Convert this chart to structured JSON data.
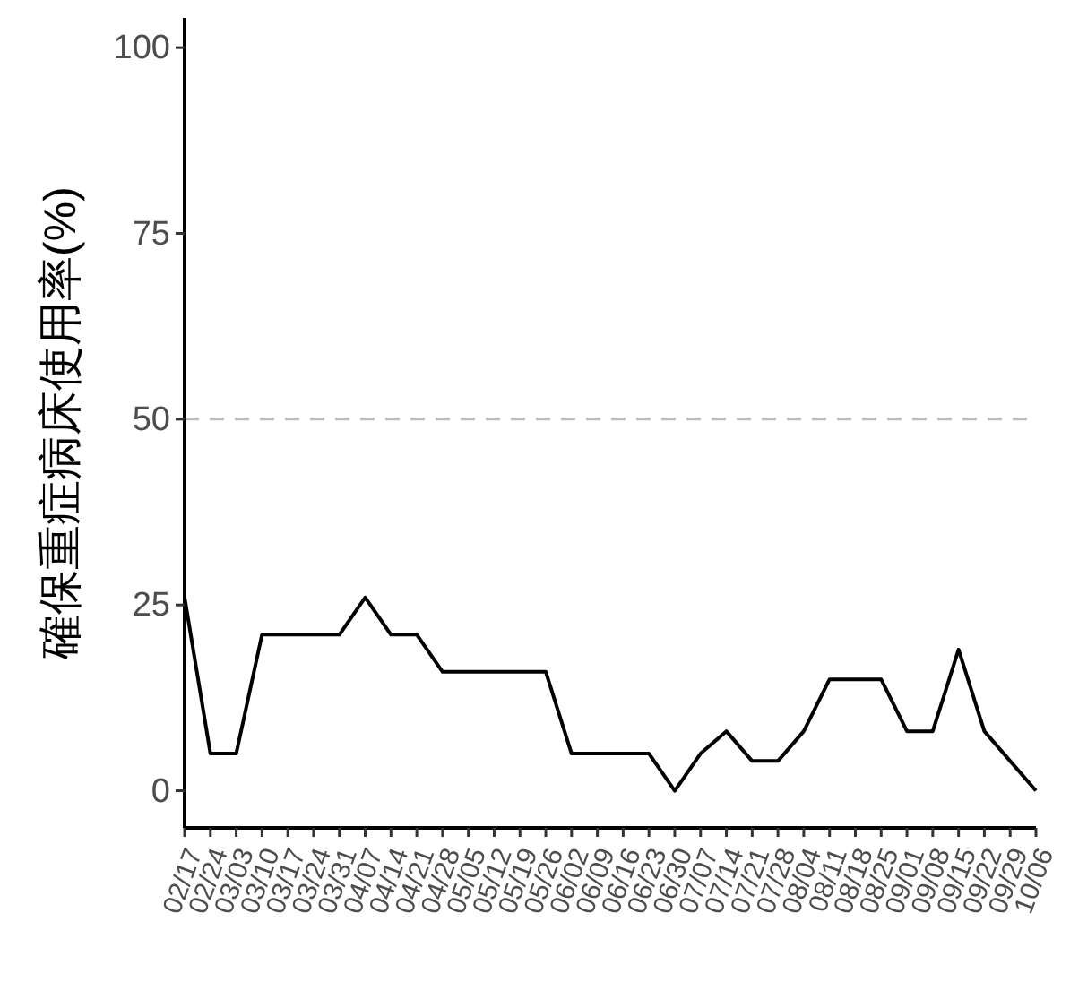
{
  "chart_data": {
    "type": "line",
    "ylabel": "確保重症病床使用率(%)",
    "categories": [
      "02/17",
      "02/24",
      "03/03",
      "03/10",
      "03/17",
      "03/24",
      "03/31",
      "04/07",
      "04/14",
      "04/21",
      "04/28",
      "05/05",
      "05/12",
      "05/19",
      "05/26",
      "06/02",
      "06/09",
      "06/16",
      "06/23",
      "06/30",
      "07/07",
      "07/14",
      "07/21",
      "07/28",
      "08/04",
      "08/11",
      "08/18",
      "08/25",
      "09/01",
      "09/08",
      "09/15",
      "09/22",
      "09/29",
      "10/06"
    ],
    "series": [
      {
        "color": "#000000",
        "values": [
          26,
          5,
          5,
          21,
          21,
          21,
          21,
          26,
          21,
          21,
          16,
          16,
          16,
          16,
          16,
          5,
          5,
          5,
          5,
          0,
          5,
          8,
          4,
          4,
          8,
          15,
          15,
          15,
          8,
          8,
          19,
          8,
          4,
          0
        ]
      }
    ],
    "ylim": [
      -5,
      104
    ],
    "yticks": [
      0,
      25,
      50,
      75,
      100
    ],
    "ref_lines": [
      {
        "axis": "y",
        "value": 50,
        "color": "#bdbdbd",
        "line_style": "dashed"
      }
    ],
    "grid": false,
    "marker": "none",
    "line_style": "solid"
  }
}
